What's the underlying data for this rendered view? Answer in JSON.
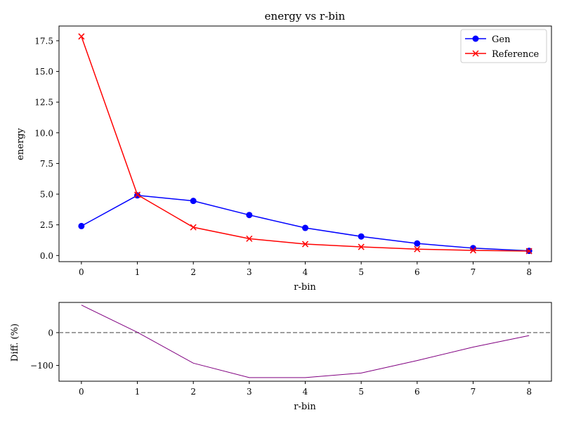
{
  "chart_data": [
    {
      "type": "line",
      "title": "energy vs r-bin",
      "xlabel": "r-bin",
      "ylabel": "energy",
      "x": [
        0,
        1,
        2,
        3,
        4,
        5,
        6,
        7,
        8
      ],
      "xlim": [
        -0.4,
        8.4
      ],
      "ylim": [
        -0.5,
        18.7
      ],
      "xticks": [
        0,
        1,
        2,
        3,
        4,
        5,
        6,
        7,
        8
      ],
      "yticks": [
        0.0,
        2.5,
        5.0,
        7.5,
        10.0,
        12.5,
        15.0,
        17.5
      ],
      "ytick_labels": [
        "0.0",
        "2.5",
        "5.0",
        "7.5",
        "10.0",
        "12.5",
        "15.0",
        "17.5"
      ],
      "grid": false,
      "legend_position": "top-right",
      "series": [
        {
          "name": "Gen",
          "color": "#0000ff",
          "marker": "circle",
          "values": [
            2.4,
            4.9,
            4.45,
            3.3,
            2.25,
            1.55,
            0.98,
            0.6,
            0.38
          ]
        },
        {
          "name": "Reference",
          "color": "#ff0000",
          "marker": "x",
          "values": [
            17.85,
            4.95,
            2.3,
            1.37,
            0.93,
            0.7,
            0.52,
            0.42,
            0.36
          ]
        }
      ]
    },
    {
      "type": "line",
      "title": "",
      "xlabel": "r-bin",
      "ylabel": "Diff. (%)",
      "x": [
        0,
        1,
        2,
        3,
        4,
        5,
        6,
        7,
        8
      ],
      "xlim": [
        -0.4,
        8.4
      ],
      "ylim": [
        -148,
        92
      ],
      "xticks": [
        0,
        1,
        2,
        3,
        4,
        5,
        6,
        7,
        8
      ],
      "yticks": [
        0,
        -100
      ],
      "ytick_labels": [
        "0",
        "−100"
      ],
      "grid": false,
      "reference_line": {
        "y": 0,
        "color": "#808080",
        "style": "dashed"
      },
      "series": [
        {
          "color": "#800080",
          "marker": "none",
          "values": [
            84,
            1,
            -93,
            -137,
            -137,
            -123,
            -85,
            -44,
            -9
          ]
        }
      ]
    }
  ]
}
